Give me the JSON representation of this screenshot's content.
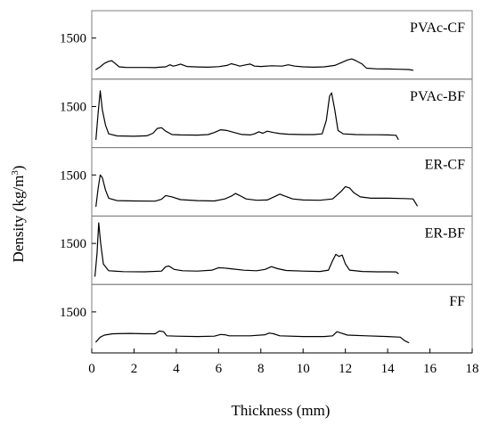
{
  "chart_data": {
    "type": "line",
    "xlabel": "Thickness (mm)",
    "ylabel": "Density (kg/m3)",
    "ylabel_parts": {
      "main": "Density (kg/m",
      "sup": "3",
      "end": ")"
    },
    "x_ticks": [
      "0",
      "2",
      "4",
      "6",
      "8",
      "10",
      "12",
      "14",
      "16",
      "18"
    ],
    "xlim": [
      0,
      18
    ],
    "y_tick_label": "1500",
    "panel_ylim": [
      900,
      1900
    ],
    "grid": false,
    "panels": [
      {
        "name": "PVAc-CF",
        "points": [
          [
            0.2,
            1040
          ],
          [
            0.4,
            1080
          ],
          [
            0.6,
            1130
          ],
          [
            0.8,
            1160
          ],
          [
            0.95,
            1170
          ],
          [
            1.1,
            1130
          ],
          [
            1.3,
            1080
          ],
          [
            1.6,
            1072
          ],
          [
            2.5,
            1070
          ],
          [
            3.0,
            1068
          ],
          [
            3.2,
            1075
          ],
          [
            3.5,
            1080
          ],
          [
            3.7,
            1110
          ],
          [
            3.85,
            1090
          ],
          [
            4.0,
            1100
          ],
          [
            4.2,
            1120
          ],
          [
            4.5,
            1085
          ],
          [
            5.0,
            1078
          ],
          [
            5.5,
            1075
          ],
          [
            6.0,
            1082
          ],
          [
            6.4,
            1100
          ],
          [
            6.6,
            1125
          ],
          [
            6.8,
            1110
          ],
          [
            7.0,
            1090
          ],
          [
            7.3,
            1110
          ],
          [
            7.5,
            1120
          ],
          [
            7.7,
            1090
          ],
          [
            8.0,
            1085
          ],
          [
            8.5,
            1095
          ],
          [
            9.0,
            1090
          ],
          [
            9.3,
            1110
          ],
          [
            9.6,
            1090
          ],
          [
            10.0,
            1080
          ],
          [
            10.5,
            1075
          ],
          [
            11.0,
            1080
          ],
          [
            11.5,
            1100
          ],
          [
            11.8,
            1140
          ],
          [
            12.1,
            1180
          ],
          [
            12.3,
            1195
          ],
          [
            12.5,
            1170
          ],
          [
            12.8,
            1120
          ],
          [
            13.0,
            1060
          ],
          [
            13.5,
            1050
          ],
          [
            14.0,
            1048
          ],
          [
            14.5,
            1045
          ],
          [
            15.0,
            1040
          ],
          [
            15.2,
            1030
          ]
        ]
      },
      {
        "name": "PVAc-BF",
        "points": [
          [
            0.2,
            1020
          ],
          [
            0.3,
            1400
          ],
          [
            0.4,
            1730
          ],
          [
            0.5,
            1450
          ],
          [
            0.65,
            1230
          ],
          [
            0.8,
            1100
          ],
          [
            1.2,
            1070
          ],
          [
            2.0,
            1065
          ],
          [
            2.6,
            1072
          ],
          [
            2.9,
            1110
          ],
          [
            3.1,
            1180
          ],
          [
            3.3,
            1190
          ],
          [
            3.5,
            1140
          ],
          [
            3.8,
            1090
          ],
          [
            4.2,
            1085
          ],
          [
            5.0,
            1082
          ],
          [
            5.5,
            1090
          ],
          [
            5.8,
            1120
          ],
          [
            6.1,
            1160
          ],
          [
            6.4,
            1150
          ],
          [
            6.8,
            1115
          ],
          [
            7.1,
            1092
          ],
          [
            7.5,
            1085
          ],
          [
            7.7,
            1100
          ],
          [
            7.9,
            1130
          ],
          [
            8.1,
            1110
          ],
          [
            8.3,
            1140
          ],
          [
            8.6,
            1120
          ],
          [
            8.9,
            1105
          ],
          [
            9.3,
            1095
          ],
          [
            10.0,
            1090
          ],
          [
            10.5,
            1090
          ],
          [
            10.9,
            1100
          ],
          [
            11.1,
            1300
          ],
          [
            11.25,
            1650
          ],
          [
            11.35,
            1700
          ],
          [
            11.5,
            1450
          ],
          [
            11.65,
            1150
          ],
          [
            11.9,
            1100
          ],
          [
            12.5,
            1090
          ],
          [
            13.0,
            1088
          ],
          [
            13.5,
            1087
          ],
          [
            14.0,
            1085
          ],
          [
            14.4,
            1080
          ],
          [
            14.5,
            1020
          ]
        ]
      },
      {
        "name": "ER-CF",
        "points": [
          [
            0.2,
            1040
          ],
          [
            0.3,
            1300
          ],
          [
            0.4,
            1500
          ],
          [
            0.5,
            1460
          ],
          [
            0.65,
            1280
          ],
          [
            0.8,
            1160
          ],
          [
            1.2,
            1125
          ],
          [
            2.0,
            1120
          ],
          [
            3.0,
            1118
          ],
          [
            3.3,
            1145
          ],
          [
            3.5,
            1200
          ],
          [
            3.8,
            1180
          ],
          [
            4.2,
            1140
          ],
          [
            5.0,
            1125
          ],
          [
            5.8,
            1120
          ],
          [
            6.3,
            1150
          ],
          [
            6.6,
            1190
          ],
          [
            6.8,
            1230
          ],
          [
            7.0,
            1200
          ],
          [
            7.3,
            1150
          ],
          [
            7.8,
            1130
          ],
          [
            8.3,
            1135
          ],
          [
            8.7,
            1190
          ],
          [
            8.9,
            1220
          ],
          [
            9.1,
            1195
          ],
          [
            9.5,
            1150
          ],
          [
            10.0,
            1135
          ],
          [
            10.8,
            1130
          ],
          [
            11.4,
            1150
          ],
          [
            11.8,
            1260
          ],
          [
            12.0,
            1330
          ],
          [
            12.2,
            1310
          ],
          [
            12.4,
            1240
          ],
          [
            12.7,
            1180
          ],
          [
            13.2,
            1160
          ],
          [
            14.0,
            1160
          ],
          [
            14.8,
            1155
          ],
          [
            15.2,
            1150
          ],
          [
            15.4,
            1050
          ]
        ]
      },
      {
        "name": "ER-BF",
        "points": [
          [
            0.15,
            1020
          ],
          [
            0.25,
            1350
          ],
          [
            0.33,
            1800
          ],
          [
            0.42,
            1500
          ],
          [
            0.55,
            1200
          ],
          [
            0.8,
            1100
          ],
          [
            1.5,
            1088
          ],
          [
            2.5,
            1085
          ],
          [
            3.3,
            1095
          ],
          [
            3.5,
            1160
          ],
          [
            3.65,
            1170
          ],
          [
            3.9,
            1120
          ],
          [
            4.3,
            1100
          ],
          [
            5.0,
            1095
          ],
          [
            5.7,
            1110
          ],
          [
            6.0,
            1145
          ],
          [
            6.3,
            1140
          ],
          [
            6.7,
            1125
          ],
          [
            7.2,
            1108
          ],
          [
            7.8,
            1100
          ],
          [
            8.2,
            1120
          ],
          [
            8.5,
            1160
          ],
          [
            8.8,
            1130
          ],
          [
            9.2,
            1105
          ],
          [
            10.0,
            1095
          ],
          [
            10.8,
            1090
          ],
          [
            11.2,
            1110
          ],
          [
            11.4,
            1250
          ],
          [
            11.55,
            1340
          ],
          [
            11.7,
            1310
          ],
          [
            11.85,
            1330
          ],
          [
            12.0,
            1200
          ],
          [
            12.2,
            1110
          ],
          [
            12.8,
            1090
          ],
          [
            13.5,
            1085
          ],
          [
            14.0,
            1085
          ],
          [
            14.4,
            1083
          ],
          [
            14.5,
            1060
          ]
        ]
      },
      {
        "name": "FF",
        "points": [
          [
            0.2,
            1060
          ],
          [
            0.4,
            1130
          ],
          [
            0.6,
            1160
          ],
          [
            1.0,
            1180
          ],
          [
            1.8,
            1185
          ],
          [
            2.5,
            1180
          ],
          [
            3.0,
            1180
          ],
          [
            3.2,
            1220
          ],
          [
            3.4,
            1210
          ],
          [
            3.55,
            1150
          ],
          [
            4.0,
            1145
          ],
          [
            5.0,
            1140
          ],
          [
            5.8,
            1145
          ],
          [
            6.1,
            1170
          ],
          [
            6.3,
            1165
          ],
          [
            6.5,
            1150
          ],
          [
            7.5,
            1150
          ],
          [
            8.2,
            1165
          ],
          [
            8.4,
            1190
          ],
          [
            8.6,
            1180
          ],
          [
            8.9,
            1150
          ],
          [
            10.0,
            1140
          ],
          [
            11.0,
            1140
          ],
          [
            11.4,
            1150
          ],
          [
            11.6,
            1210
          ],
          [
            11.8,
            1190
          ],
          [
            12.1,
            1160
          ],
          [
            13.0,
            1150
          ],
          [
            14.0,
            1140
          ],
          [
            14.6,
            1130
          ],
          [
            14.8,
            1080
          ],
          [
            15.0,
            1050
          ]
        ]
      }
    ]
  }
}
